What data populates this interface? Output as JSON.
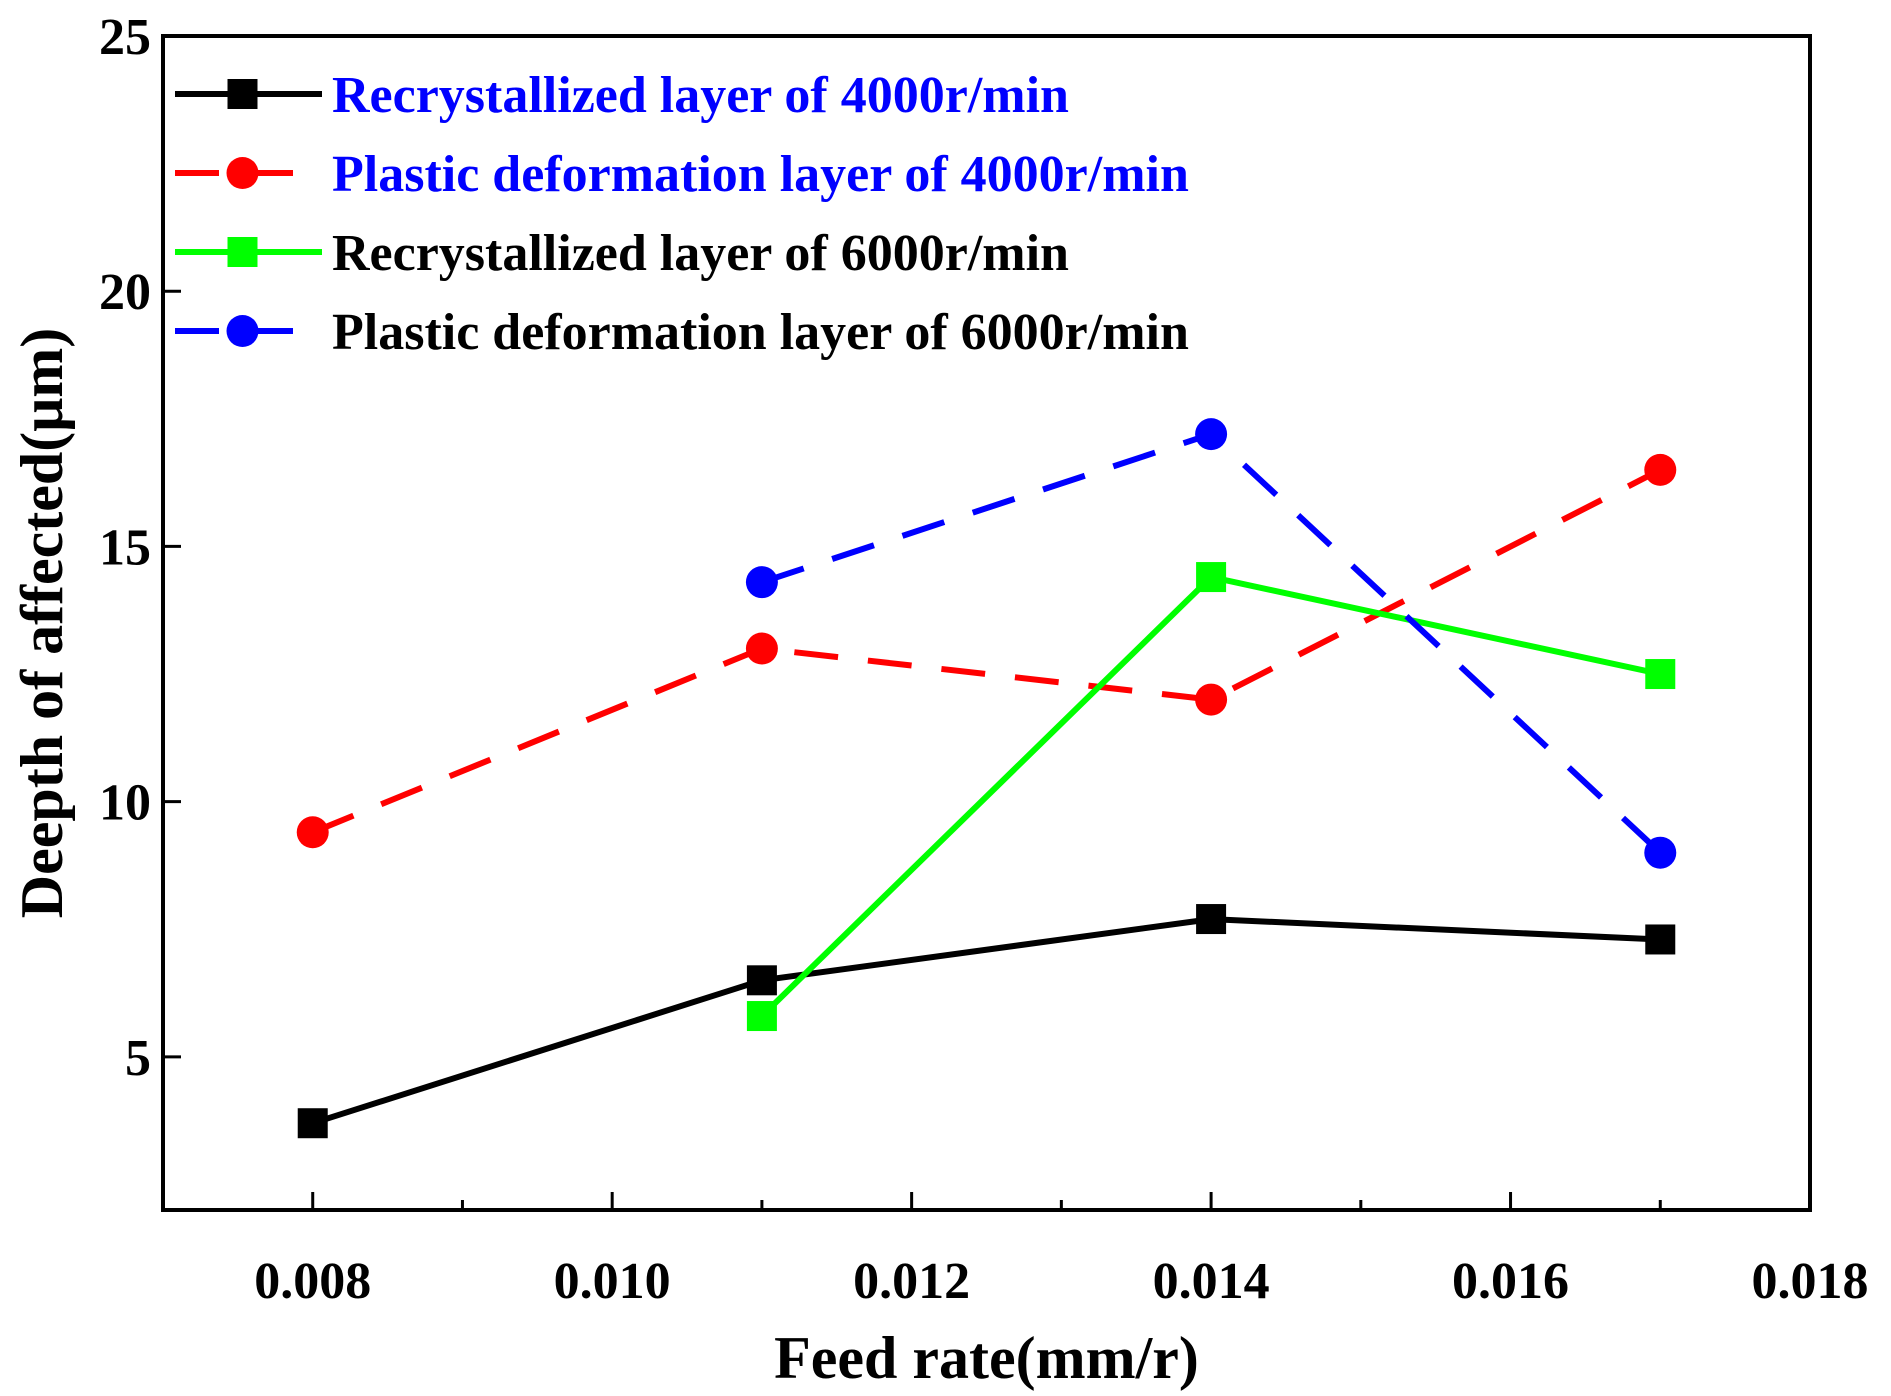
{
  "chart_data": {
    "type": "line",
    "title": "",
    "xlabel": "Feed rate(mm/r)",
    "ylabel": "Deepth of affected(μm)",
    "xlim": [
      0.007,
      0.018
    ],
    "ylim": [
      2,
      25
    ],
    "x_ticks": [
      0.008,
      0.01,
      0.012,
      0.014,
      0.016,
      0.018
    ],
    "x_tick_labels": [
      "0.008",
      "0.010",
      "0.012",
      "0.014",
      "0.016",
      "0.018"
    ],
    "x_minor_ticks": [
      0.009,
      0.011,
      0.013,
      0.015,
      0.017
    ],
    "y_ticks": [
      5,
      10,
      15,
      20,
      25
    ],
    "y_tick_labels": [
      "5",
      "10",
      "15",
      "20",
      "25"
    ],
    "grid": false,
    "legend_position": "top-left",
    "series": [
      {
        "name": "Recrystallized layer of 4000r/min",
        "x": [
          0.008,
          0.011,
          0.014,
          0.017
        ],
        "values": [
          3.7,
          6.5,
          7.7,
          7.3
        ],
        "color": "#000000",
        "label_color": "#0000FF",
        "marker": "square",
        "dash": "solid"
      },
      {
        "name": "Plastic deformation layer of 4000r/min",
        "x": [
          0.008,
          0.011,
          0.014,
          0.017
        ],
        "values": [
          9.4,
          13.0,
          12.0,
          16.5
        ],
        "color": "#FF0000",
        "label_color": "#0000FF",
        "marker": "circle",
        "dash": "dashed"
      },
      {
        "name": "Recrystallized layer of 6000r/min",
        "x": [
          0.011,
          0.014,
          0.017
        ],
        "values": [
          5.8,
          14.4,
          12.5
        ],
        "color": "#00FF00",
        "label_color": "#000000",
        "marker": "square",
        "dash": "solid"
      },
      {
        "name": "Plastic deformation layer of 6000r/min",
        "x": [
          0.011,
          0.014,
          0.017
        ],
        "values": [
          14.3,
          17.2,
          9.0
        ],
        "color": "#0000FF",
        "label_color": "#000000",
        "marker": "circle",
        "dash": "dashed"
      }
    ]
  }
}
